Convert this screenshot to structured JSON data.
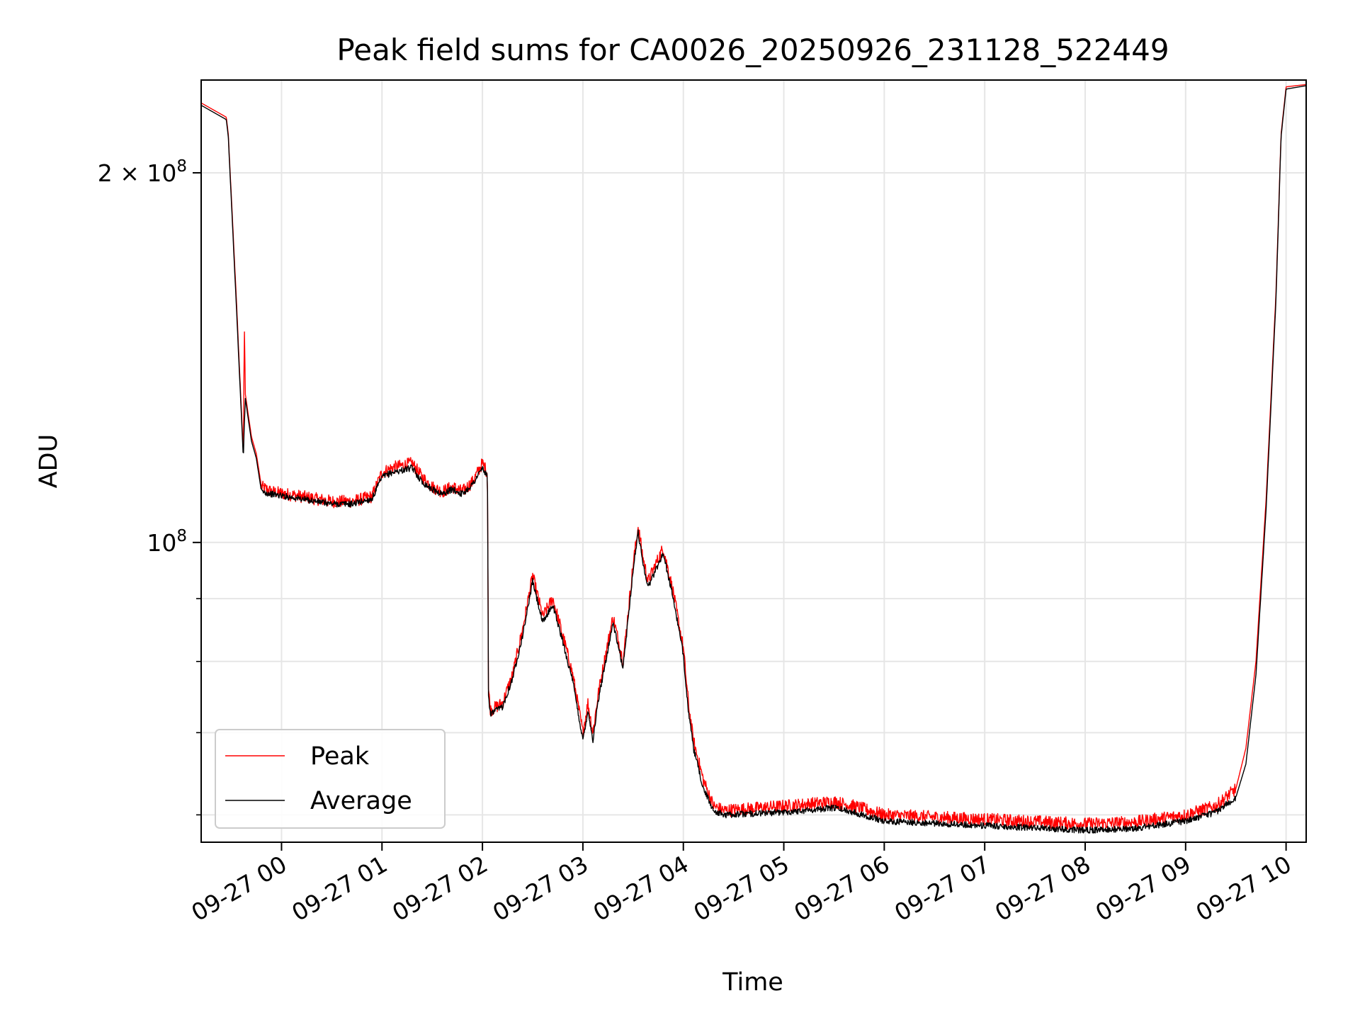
{
  "chart_data": {
    "type": "line",
    "title": "Peak field sums for CA0026_20250926_231128_522449",
    "xlabel": "Time",
    "ylabel": "ADU",
    "yscale": "log",
    "xlim_hours": [
      -0.8,
      10.2
    ],
    "ylim": [
      57000000,
      238000000
    ],
    "grid": true,
    "legend_position": "lower-left",
    "x_ticks": [
      {
        "hour": 0,
        "label": "09-27 00"
      },
      {
        "hour": 1,
        "label": "09-27 01"
      },
      {
        "hour": 2,
        "label": "09-27 02"
      },
      {
        "hour": 3,
        "label": "09-27 03"
      },
      {
        "hour": 4,
        "label": "09-27 04"
      },
      {
        "hour": 5,
        "label": "09-27 05"
      },
      {
        "hour": 6,
        "label": "09-27 06"
      },
      {
        "hour": 7,
        "label": "09-27 07"
      },
      {
        "hour": 8,
        "label": "09-27 08"
      },
      {
        "hour": 9,
        "label": "09-27 09"
      },
      {
        "hour": 10,
        "label": "09-27 10"
      }
    ],
    "y_major_ticks": [
      {
        "value": 100000000,
        "mant": "",
        "exp": "8",
        "base": "10"
      },
      {
        "value": 200000000,
        "mant": "2 × ",
        "exp": "8",
        "base": "10"
      }
    ],
    "y_minor_ticks": [
      60000000,
      70000000,
      80000000,
      90000000
    ],
    "x_unit": "hours since 09-27 00:00",
    "series": [
      {
        "name": "Peak",
        "color": "#ff0000",
        "noise": 0.012,
        "x": [
          -0.8,
          -0.55,
          -0.53,
          -0.45,
          -0.38,
          -0.37,
          -0.36,
          -0.3,
          -0.25,
          -0.2,
          -0.1,
          0.2,
          0.5,
          0.7,
          0.9,
          1.0,
          1.1,
          1.3,
          1.4,
          1.5,
          1.6,
          1.7,
          1.8,
          1.9,
          2.0,
          2.05,
          2.06,
          2.08,
          2.2,
          2.3,
          2.4,
          2.5,
          2.6,
          2.7,
          2.8,
          2.9,
          3.0,
          3.05,
          3.1,
          3.15,
          3.2,
          3.3,
          3.4,
          3.5,
          3.55,
          3.6,
          3.65,
          3.7,
          3.8,
          3.9,
          4.0,
          4.05,
          4.1,
          4.2,
          4.3,
          4.4,
          5.0,
          5.5,
          5.7,
          6.0,
          7.0,
          8.0,
          8.5,
          9.0,
          9.3,
          9.5,
          9.6,
          9.7,
          9.8,
          9.9,
          9.95,
          10.0,
          10.2
        ],
        "y": [
          228000000,
          222000000,
          215000000,
          158000000,
          118000000,
          150000000,
          132000000,
          122000000,
          118000000,
          111000000,
          110000000,
          109000000,
          108000000,
          108000000,
          109000000,
          114000000,
          115000000,
          116000000,
          113000000,
          111000000,
          110000000,
          111000000,
          110000000,
          112000000,
          116000000,
          114000000,
          76000000,
          73000000,
          74000000,
          78000000,
          85000000,
          94000000,
          87000000,
          90000000,
          84000000,
          78000000,
          70000000,
          74000000,
          70000000,
          75000000,
          79000000,
          87000000,
          80000000,
          96000000,
          103000000,
          97000000,
          93000000,
          95000000,
          99000000,
          91000000,
          82000000,
          74000000,
          69000000,
          64000000,
          61000000,
          60500000,
          61000000,
          61500000,
          61000000,
          60000000,
          59500000,
          59000000,
          59200000,
          60000000,
          61000000,
          63000000,
          68000000,
          80000000,
          108000000,
          160000000,
          215000000,
          235000000,
          236000000
        ]
      },
      {
        "name": "Average",
        "color": "#000000",
        "noise": 0.006,
        "x": [
          -0.8,
          -0.55,
          -0.53,
          -0.45,
          -0.38,
          -0.37,
          -0.36,
          -0.3,
          -0.25,
          -0.2,
          -0.1,
          0.2,
          0.5,
          0.7,
          0.9,
          1.0,
          1.1,
          1.3,
          1.4,
          1.5,
          1.6,
          1.7,
          1.8,
          1.9,
          2.0,
          2.05,
          2.06,
          2.08,
          2.2,
          2.3,
          2.4,
          2.5,
          2.6,
          2.7,
          2.8,
          2.9,
          3.0,
          3.05,
          3.1,
          3.15,
          3.2,
          3.3,
          3.4,
          3.5,
          3.55,
          3.6,
          3.65,
          3.7,
          3.8,
          3.9,
          4.0,
          4.05,
          4.1,
          4.2,
          4.3,
          4.4,
          5.0,
          5.5,
          5.7,
          6.0,
          7.0,
          8.0,
          8.5,
          9.0,
          9.3,
          9.5,
          9.6,
          9.7,
          9.8,
          9.9,
          9.95,
          10.0,
          10.2
        ],
        "y": [
          227000000,
          221000000,
          214000000,
          156000000,
          117000000,
          125000000,
          131000000,
          121000000,
          117000000,
          110000000,
          109500000,
          108500000,
          107500000,
          107500000,
          108500000,
          113000000,
          114000000,
          115000000,
          112000000,
          110500000,
          109500000,
          110500000,
          109500000,
          111500000,
          115000000,
          113000000,
          75000000,
          72500000,
          73500000,
          77500000,
          84000000,
          93000000,
          86000000,
          89000000,
          83000000,
          77000000,
          69000000,
          73000000,
          69000000,
          74000000,
          78000000,
          86000000,
          79000000,
          95000000,
          102000000,
          96000000,
          92000000,
          94000000,
          98000000,
          90000000,
          81000000,
          73000000,
          68000000,
          63000000,
          60500000,
          60000000,
          60300000,
          60800000,
          60300000,
          59300000,
          58800000,
          58300000,
          58500000,
          59300000,
          60300000,
          62000000,
          66000000,
          78000000,
          106000000,
          158000000,
          214000000,
          234000000,
          235500000
        ]
      }
    ]
  }
}
